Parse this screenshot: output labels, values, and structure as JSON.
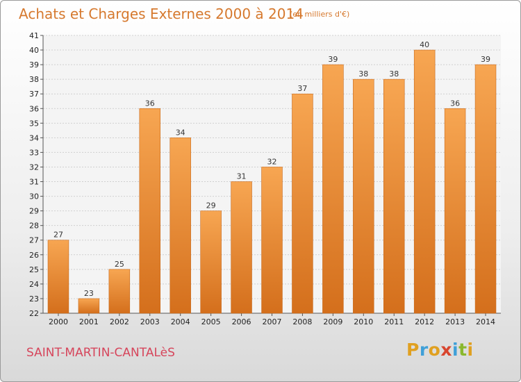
{
  "header": {
    "title": "Achats et Charges Externes 2000 à 2014",
    "subtitle": "(en milliers d'€)"
  },
  "footer": {
    "commune": "SAINT-MARTIN-CANTALèS",
    "logo_letters": [
      "P",
      "r",
      "o",
      "x",
      "i",
      "t",
      "i"
    ],
    "logo_colors": [
      "#e0a020",
      "#3fa0d8",
      "#e0a020",
      "#d8452e",
      "#3fa0d8",
      "#8ab82e",
      "#e0a020"
    ]
  },
  "chart_data": {
    "type": "bar",
    "categories": [
      "2000",
      "2001",
      "2002",
      "2003",
      "2004",
      "2005",
      "2006",
      "2007",
      "2008",
      "2009",
      "2010",
      "2011",
      "2012",
      "2013",
      "2014"
    ],
    "values": [
      27,
      23,
      25,
      36,
      34,
      29,
      31,
      32,
      37,
      39,
      38,
      38,
      40,
      36,
      39
    ],
    "ylim": [
      22,
      41
    ],
    "yticks": [
      22,
      23,
      24,
      25,
      26,
      27,
      28,
      29,
      30,
      31,
      32,
      33,
      34,
      35,
      36,
      37,
      38,
      39,
      40,
      41
    ],
    "grid": true,
    "bar_color": "#f0963c",
    "bar_color_light": "#f7a95c",
    "bar_color_dark": "#d07020"
  }
}
